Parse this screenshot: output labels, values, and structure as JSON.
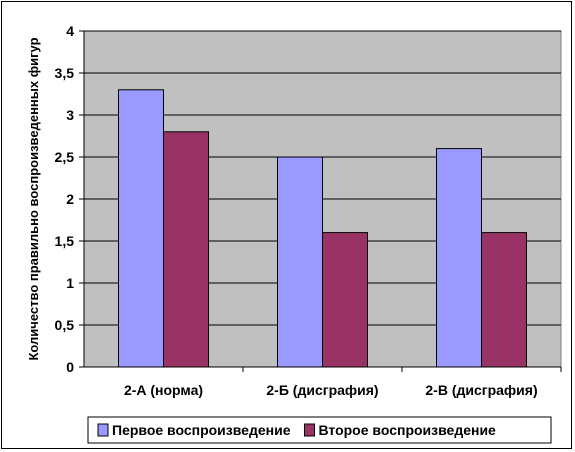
{
  "chart_data": {
    "type": "bar",
    "title": "",
    "xlabel": "",
    "ylabel": "Количество правильно воспроизведенных фигур",
    "categories": [
      "2-А (норма)",
      "2-Б (дисграфия)",
      "2-В (дисграфия)"
    ],
    "series": [
      {
        "name": "Первое воспроизведение",
        "values": [
          3.3,
          2.5,
          2.6
        ],
        "color": "#9999FF"
      },
      {
        "name": "Второе воспроизведение",
        "values": [
          2.8,
          1.6,
          1.6
        ],
        "color": "#993366"
      }
    ],
    "ylim": [
      0,
      4
    ],
    "y_ticks": [
      0,
      0.5,
      1,
      1.5,
      2,
      2.5,
      3,
      3.5,
      4
    ],
    "y_tick_labels": [
      "0",
      "0,5",
      "1",
      "1,5",
      "2",
      "2,5",
      "3",
      "3,5",
      "4"
    ],
    "grid": true,
    "plot_background": "#C0C0C0",
    "grid_color": "#000000",
    "legend_position": "bottom"
  }
}
